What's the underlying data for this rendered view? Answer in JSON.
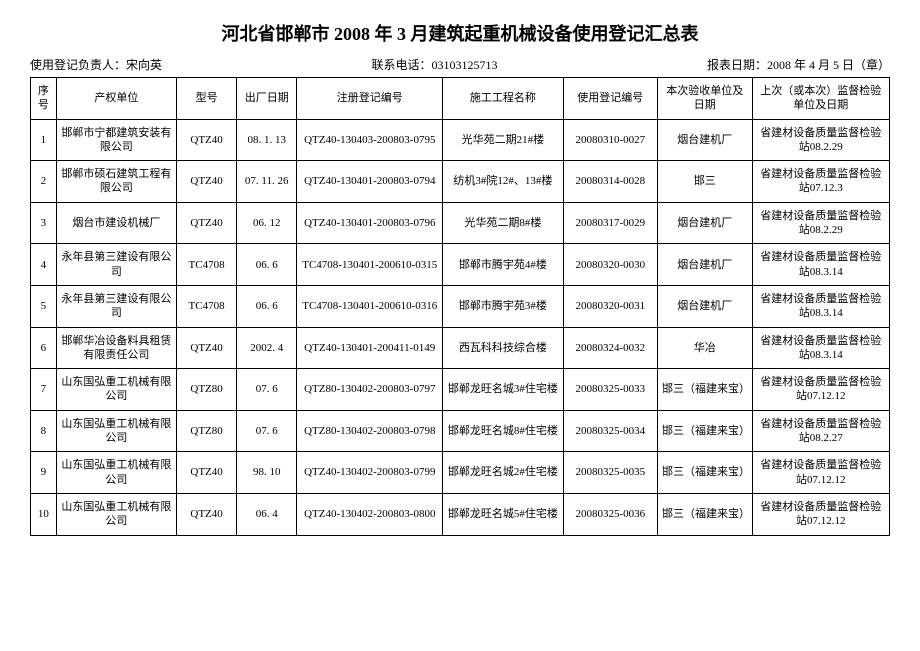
{
  "title": "河北省邯郸市 2008 年 3 月建筑起重机械设备使用登记汇总表",
  "meta": {
    "responsible_label": "使用登记负责人：宋向英",
    "phone_label": "联系电话：03103125713",
    "report_date_label": "报表日期：2008 年 4 月 5 日（章）"
  },
  "columns": {
    "seq": "序号",
    "owner": "产权单位",
    "model": "型号",
    "factory_date": "出厂日期",
    "reg_no": "注册登记编号",
    "project": "施工工程名称",
    "use_reg_no": "使用登记编号",
    "acceptance": "本次验收单位及日期",
    "inspection": "上次（或本次）监督检验单位及日期"
  },
  "rows": [
    {
      "seq": "1",
      "owner": "邯郸市宁都建筑安装有限公司",
      "model": "QTZ40",
      "factory_date": "08. 1. 13",
      "reg_no": "QTZ40-130403-200803-0795",
      "project": "光华苑二期21#楼",
      "use_reg_no": "20080310-0027",
      "acceptance": "烟台建机厂",
      "inspection": "省建材设备质量监督检验站08.2.29"
    },
    {
      "seq": "2",
      "owner": "邯郸市硕石建筑工程有限公司",
      "model": "QTZ40",
      "factory_date": "07. 11. 26",
      "reg_no": "QTZ40-130401-200803-0794",
      "project": "纺机3#院12#、13#楼",
      "use_reg_no": "20080314-0028",
      "acceptance": "邯三",
      "inspection": "省建材设备质量监督检验站07.12.3"
    },
    {
      "seq": "3",
      "owner": "烟台市建设机械厂",
      "model": "QTZ40",
      "factory_date": "06. 12",
      "reg_no": "QTZ40-130401-200803-0796",
      "project": "光华苑二期8#楼",
      "use_reg_no": "20080317-0029",
      "acceptance": "烟台建机厂",
      "inspection": "省建材设备质量监督检验站08.2.29"
    },
    {
      "seq": "4",
      "owner": "永年县第三建设有限公司",
      "model": "TC4708",
      "factory_date": "06. 6",
      "reg_no": "TC4708-130401-200610-0315",
      "project": "邯郸市腾宇苑4#楼",
      "use_reg_no": "20080320-0030",
      "acceptance": "烟台建机厂",
      "inspection": "省建材设备质量监督检验站08.3.14"
    },
    {
      "seq": "5",
      "owner": "永年县第三建设有限公司",
      "model": "TC4708",
      "factory_date": "06. 6",
      "reg_no": "TC4708-130401-200610-0316",
      "project": "邯郸市腾宇苑3#楼",
      "use_reg_no": "20080320-0031",
      "acceptance": "烟台建机厂",
      "inspection": "省建材设备质量监督检验站08.3.14"
    },
    {
      "seq": "6",
      "owner": "邯郸华冶设备料具租赁有限责任公司",
      "model": "QTZ40",
      "factory_date": "2002. 4",
      "reg_no": "QTZ40-130401-200411-0149",
      "project": "西瓦科科技综合楼",
      "use_reg_no": "20080324-0032",
      "acceptance": "华冶",
      "inspection": "省建材设备质量监督检验站08.3.14"
    },
    {
      "seq": "7",
      "owner": "山东国弘重工机械有限公司",
      "model": "QTZ80",
      "factory_date": "07. 6",
      "reg_no": "QTZ80-130402-200803-0797",
      "project": "邯郸龙旺名城3#住宅楼",
      "use_reg_no": "20080325-0033",
      "acceptance": "邯三（福建来宝）",
      "inspection": "省建材设备质量监督检验站07.12.12"
    },
    {
      "seq": "8",
      "owner": "山东国弘重工机械有限公司",
      "model": "QTZ80",
      "factory_date": "07. 6",
      "reg_no": "QTZ80-130402-200803-0798",
      "project": "邯郸龙旺名城8#住宅楼",
      "use_reg_no": "20080325-0034",
      "acceptance": "邯三（福建来宝）",
      "inspection": "省建材设备质量监督检验站08.2.27"
    },
    {
      "seq": "9",
      "owner": "山东国弘重工机械有限公司",
      "model": "QTZ40",
      "factory_date": "98. 10",
      "reg_no": "QTZ40-130402-200803-0799",
      "project": "邯郸龙旺名城2#住宅楼",
      "use_reg_no": "20080325-0035",
      "acceptance": "邯三（福建来宝）",
      "inspection": "省建材设备质量监督检验站07.12.12"
    },
    {
      "seq": "10",
      "owner": "山东国弘重工机械有限公司",
      "model": "QTZ40",
      "factory_date": "06. 4",
      "reg_no": "QTZ40-130402-200803-0800",
      "project": "邯郸龙旺名城5#住宅楼",
      "use_reg_no": "20080325-0036",
      "acceptance": "邯三（福建来宝）",
      "inspection": "省建材设备质量监督检验站07.12.12"
    }
  ]
}
